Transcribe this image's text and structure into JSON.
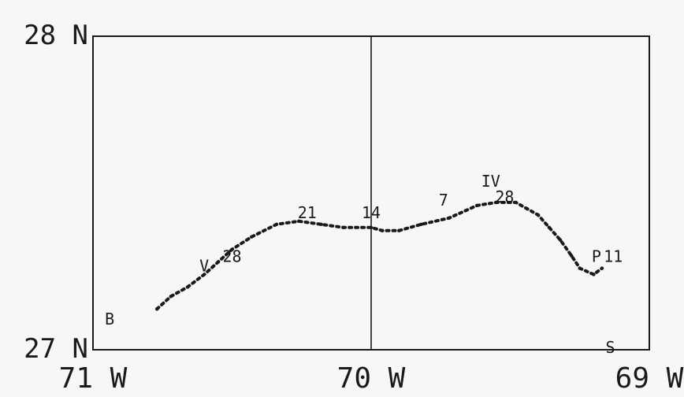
{
  "chart_data": {
    "type": "line",
    "title": "",
    "xlabel": "",
    "ylabel": "",
    "xlim": [
      -71,
      -69
    ],
    "ylim": [
      27,
      28
    ],
    "x_ticks": [
      {
        "value": -71,
        "label": "71 W"
      },
      {
        "value": -70,
        "label": "70 W"
      },
      {
        "value": -69,
        "label": "69 W"
      }
    ],
    "y_ticks": [
      {
        "value": 27,
        "label": "27 N"
      },
      {
        "value": 28,
        "label": "28 N"
      }
    ],
    "grid": "vertical line at 70 W",
    "series": [
      {
        "marker": "dotted",
        "x": [
          -70.77,
          -70.72,
          -70.66,
          -70.6,
          -70.55,
          -70.5,
          -70.43,
          -70.34,
          -70.26,
          -70.18,
          -70.1,
          -70.0,
          -69.96,
          -69.9,
          -69.82,
          -69.72,
          -69.62,
          -69.55,
          -69.48,
          -69.44,
          -69.4,
          -69.36,
          -69.32,
          -69.28,
          -69.25,
          -69.2,
          -69.17
        ],
        "y": [
          27.13,
          27.17,
          27.2,
          27.24,
          27.28,
          27.32,
          27.36,
          27.4,
          27.41,
          27.4,
          27.39,
          27.39,
          27.38,
          27.38,
          27.4,
          27.42,
          27.46,
          27.47,
          27.47,
          27.45,
          27.43,
          27.39,
          27.35,
          27.3,
          27.26,
          27.24,
          27.26
        ]
      }
    ],
    "annotations": [
      {
        "text": "V",
        "x": -70.6,
        "y": 27.25
      },
      {
        "text": "28",
        "x": -70.5,
        "y": 27.28
      },
      {
        "text": "21",
        "x": -70.23,
        "y": 27.42
      },
      {
        "text": "14",
        "x": -70.0,
        "y": 27.42
      },
      {
        "text": "7",
        "x": -69.74,
        "y": 27.46
      },
      {
        "text": "IV",
        "x": -69.57,
        "y": 27.52
      },
      {
        "text": "28",
        "x": -69.52,
        "y": 27.47
      },
      {
        "text": "P",
        "x": -69.19,
        "y": 27.28
      },
      {
        "text": "11",
        "x": -69.13,
        "y": 27.28
      },
      {
        "text": "B",
        "x": -70.94,
        "y": 27.08
      },
      {
        "text": "S",
        "x": -69.14,
        "y": 26.99
      }
    ]
  }
}
